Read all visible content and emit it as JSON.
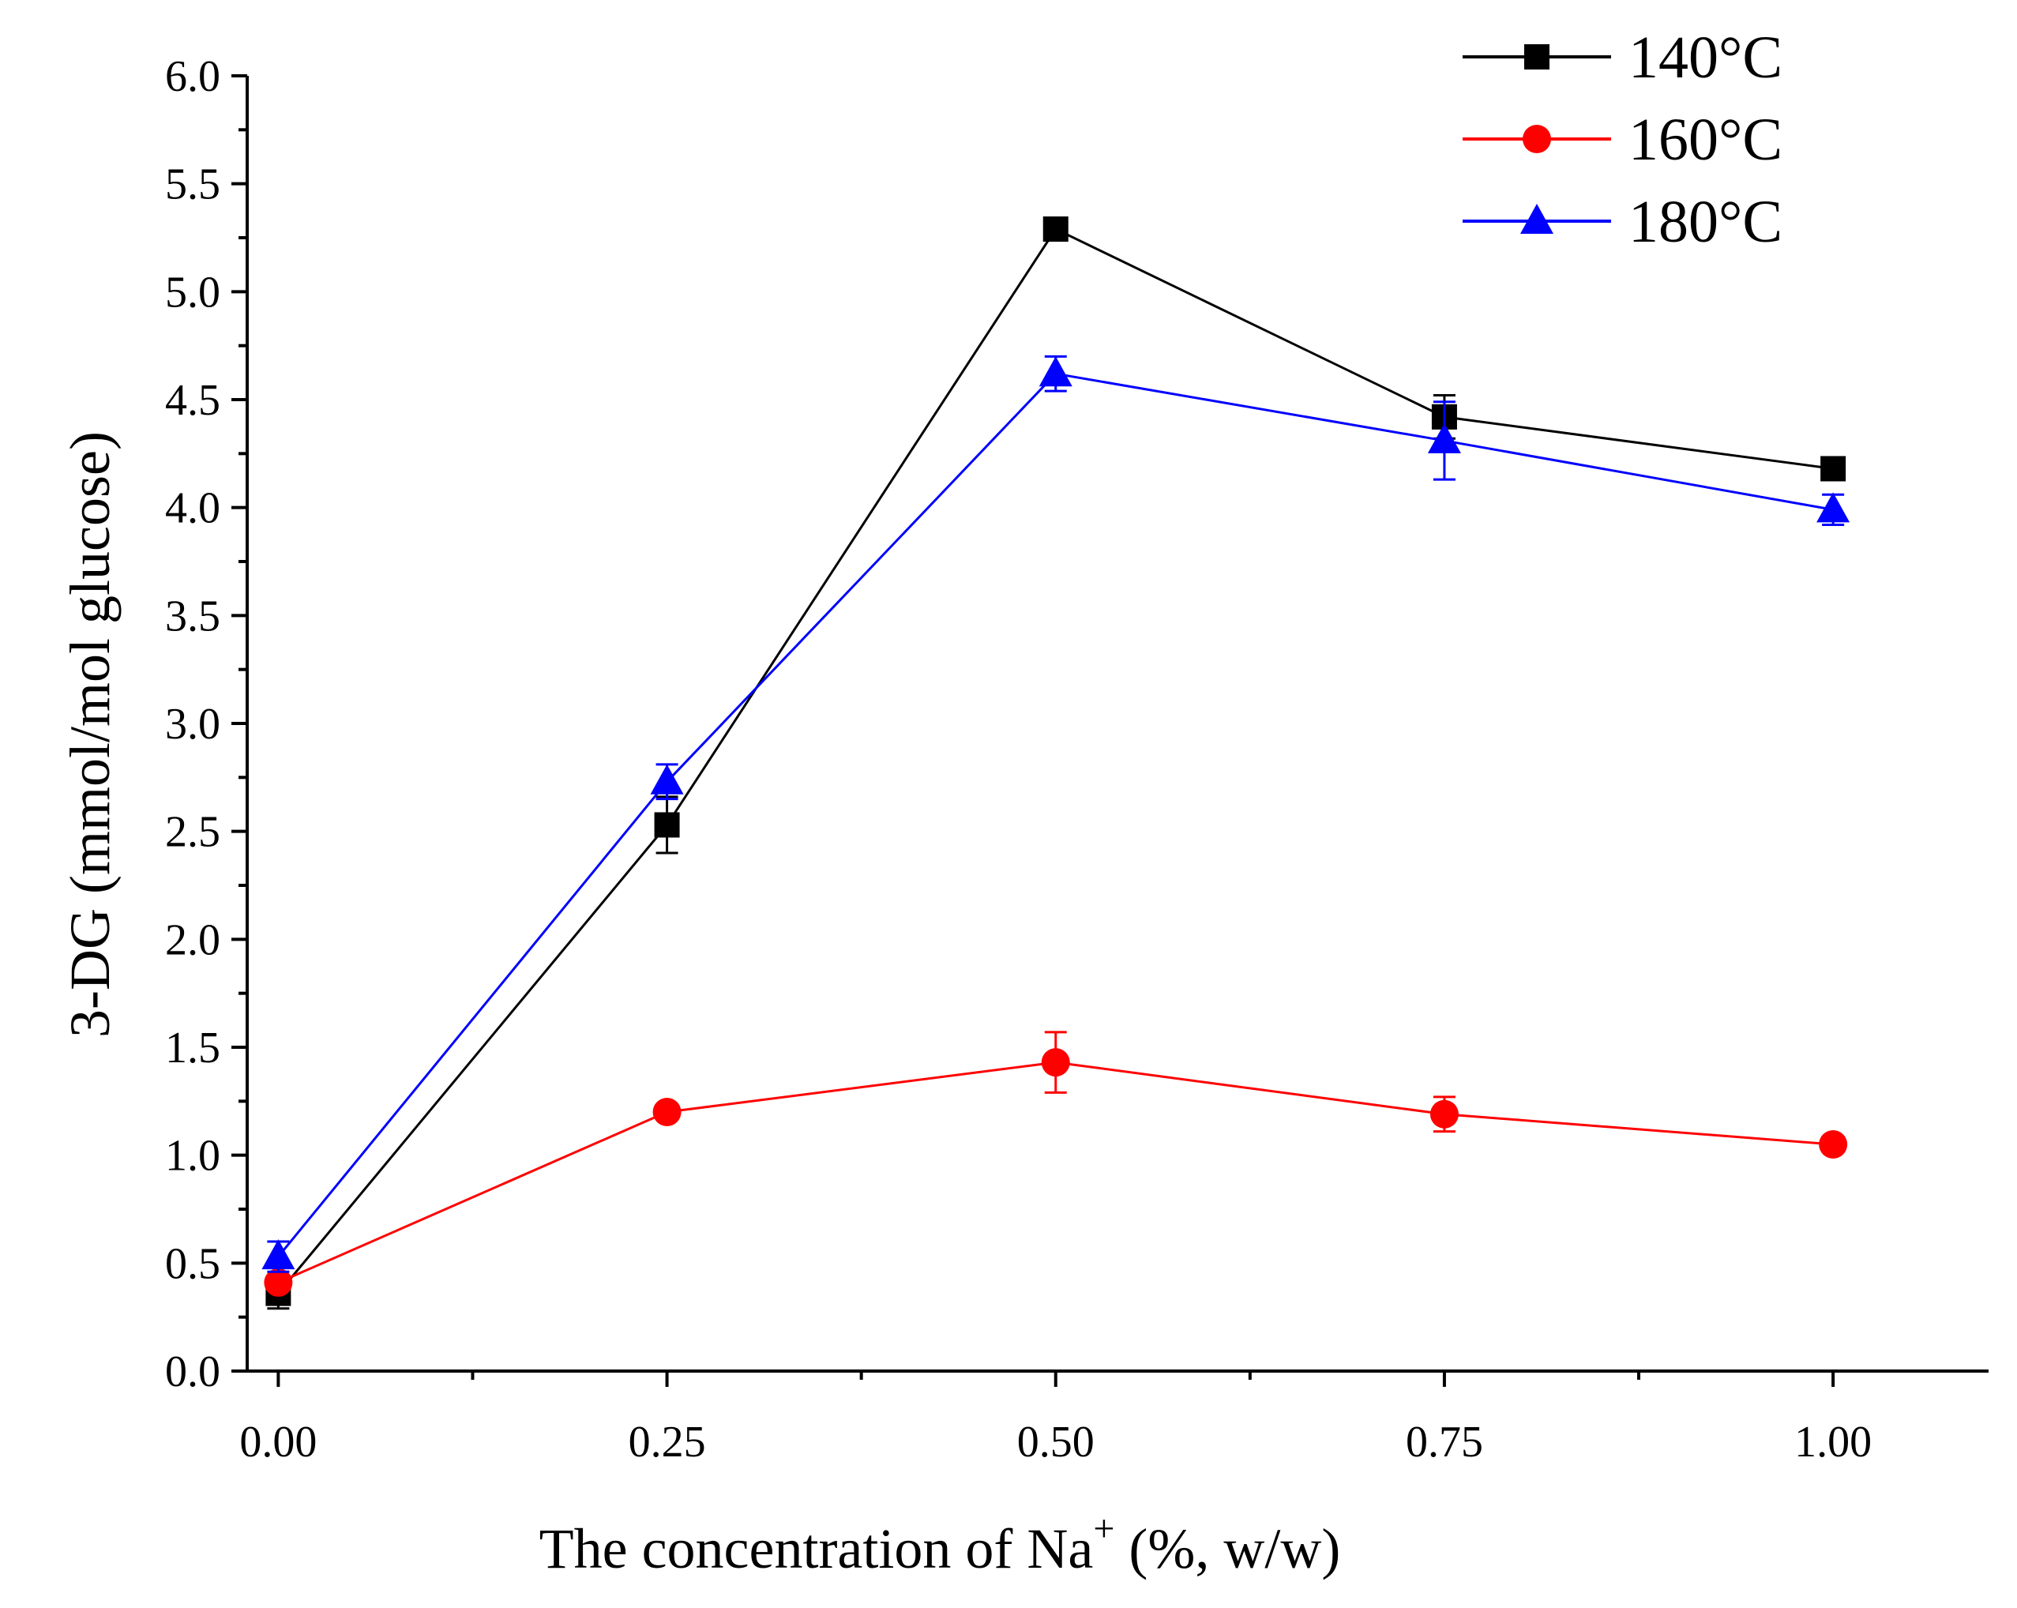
{
  "chart_data": {
    "type": "line",
    "title": "",
    "xlabel_main": "The concentration of Na",
    "xlabel_sup": "+",
    "xlabel_tail": " (%, w/w)",
    "ylabel": "3-DG (mmol/mol glucose)",
    "x": [
      0.0,
      0.25,
      0.5,
      0.75,
      1.0
    ],
    "xlim": [
      -0.02,
      1.1
    ],
    "ylim": [
      0.0,
      6.0
    ],
    "x_ticks": [
      0.0,
      0.25,
      0.5,
      0.75,
      1.0
    ],
    "x_tick_labels": [
      "0.00",
      "0.25",
      "0.50",
      "0.75",
      "1.00"
    ],
    "x_minor_ticks": [
      0.125,
      0.375,
      0.625,
      0.875
    ],
    "y_ticks": [
      0.0,
      0.5,
      1.0,
      1.5,
      2.0,
      2.5,
      3.0,
      3.5,
      4.0,
      4.5,
      5.0,
      5.5,
      6.0
    ],
    "y_tick_labels": [
      "0.0",
      "0.5",
      "1.0",
      "1.5",
      "2.0",
      "2.5",
      "3.0",
      "3.5",
      "4.0",
      "4.5",
      "5.0",
      "5.5",
      "6.0"
    ],
    "legend_position": "top-right",
    "series": [
      {
        "name": "140°C",
        "color": "#000000",
        "marker": "square",
        "values": [
          0.36,
          2.53,
          5.29,
          4.42,
          4.18
        ],
        "errors": [
          0.07,
          0.13,
          0.02,
          0.1,
          0.03
        ]
      },
      {
        "name": "160°C",
        "color": "#ff0000",
        "marker": "circle",
        "values": [
          0.41,
          1.2,
          1.43,
          1.19,
          1.05
        ],
        "errors": [
          0.03,
          0.03,
          0.14,
          0.08,
          0.03
        ]
      },
      {
        "name": "180°C",
        "color": "#0000ff",
        "marker": "triangle",
        "values": [
          0.53,
          2.73,
          4.62,
          4.31,
          3.99
        ],
        "errors": [
          0.07,
          0.08,
          0.08,
          0.18,
          0.07
        ]
      }
    ]
  }
}
